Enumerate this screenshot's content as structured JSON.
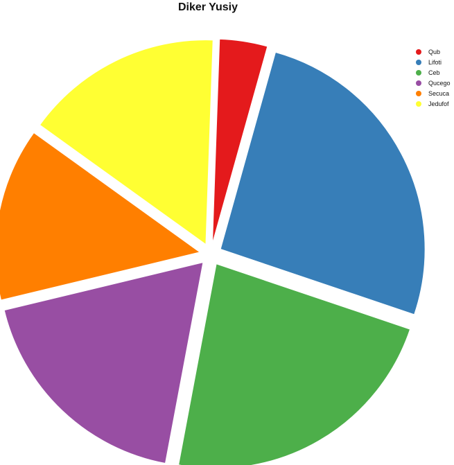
{
  "chart_data": {
    "type": "pie",
    "title": "Diker Yusiy",
    "categories": [
      "Qub",
      "Lifoti",
      "Ceb",
      "Qucego",
      "Secuca",
      "Jedufof"
    ],
    "values": [
      3.7,
      25.3,
      22.3,
      17.9,
      13.4,
      15.3
    ],
    "colors": [
      "#e41a1c",
      "#377eb8",
      "#4daf4a",
      "#984ea3",
      "#ff7f00",
      "#ffff33"
    ],
    "exploded": true,
    "legend_position": "top-right"
  }
}
